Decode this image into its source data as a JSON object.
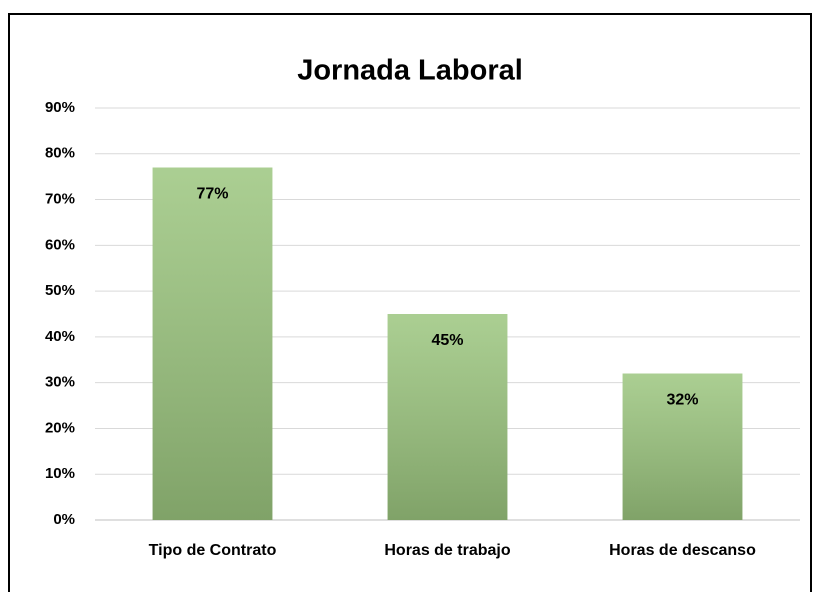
{
  "chart_data": {
    "type": "bar",
    "title": "Jornada Laboral",
    "categories": [
      "Tipo de Contrato",
      "Horas de trabajo",
      "Horas de descanso"
    ],
    "values": [
      77,
      45,
      32
    ],
    "value_labels": [
      "77%",
      "45%",
      "32%"
    ],
    "color": "#9cc67f",
    "ylim": [
      0,
      90
    ],
    "yticks": [
      {
        "value": 0,
        "label": "0%"
      },
      {
        "value": 10,
        "label": "10%"
      },
      {
        "value": 20,
        "label": "20%"
      },
      {
        "value": 30,
        "label": "30%"
      },
      {
        "value": 40,
        "label": "40%"
      },
      {
        "value": 50,
        "label": "50%"
      },
      {
        "value": 60,
        "label": "60%"
      },
      {
        "value": 70,
        "label": "70%"
      },
      {
        "value": 80,
        "label": "80%"
      },
      {
        "value": 90,
        "label": "90%"
      }
    ],
    "grid": true
  }
}
